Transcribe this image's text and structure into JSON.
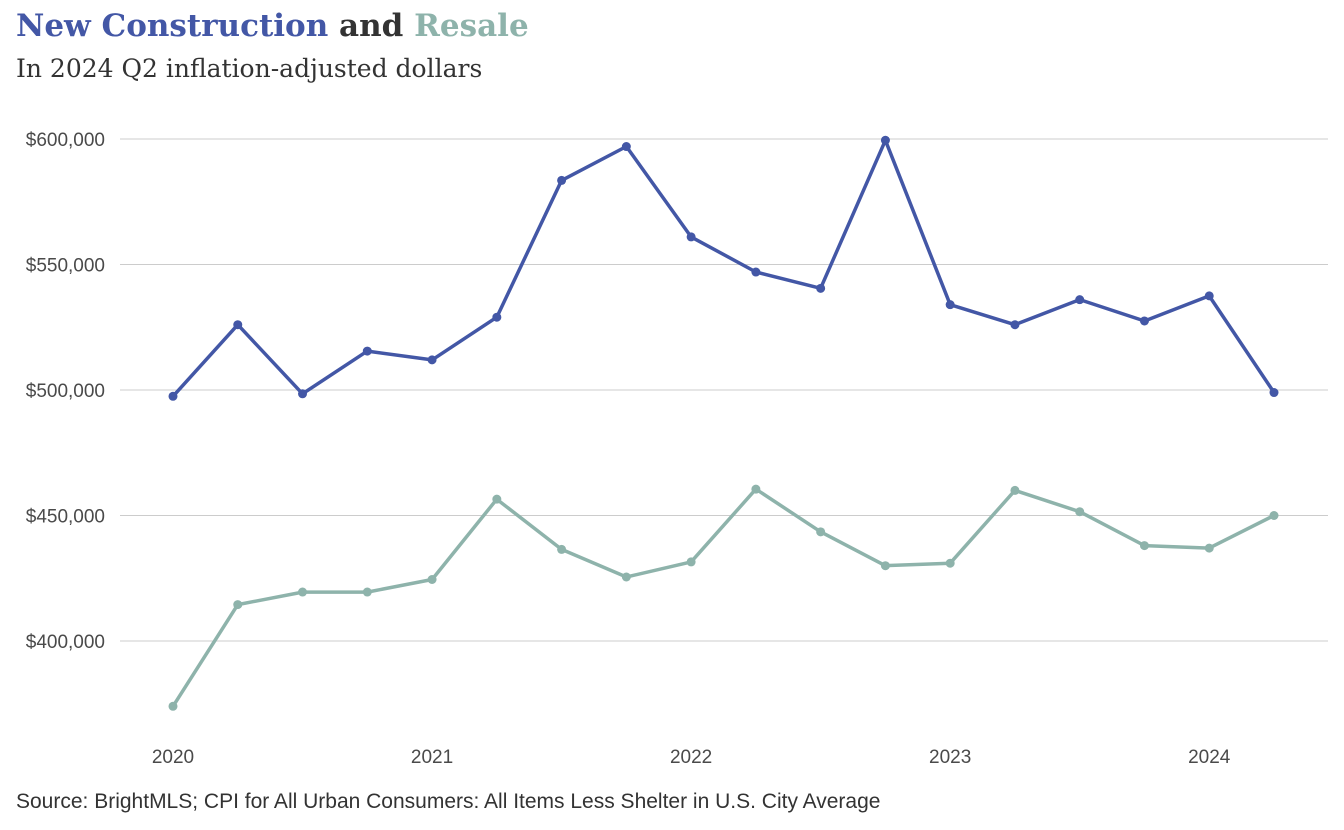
{
  "title": {
    "part1": "New Construction",
    "joiner": " and ",
    "part2": "Resale"
  },
  "subtitle": "In 2024 Q2 inflation-adjusted dollars",
  "source": "Source: BrightMLS; CPI for All Urban Consumers: All Items Less Shelter in U.S. City Average",
  "colors": {
    "new_construction": "#4357a6",
    "resale": "#8eb3ab",
    "joiner": "#333333",
    "grid": "#cccccc",
    "axis": "#4a4a4a"
  },
  "chart_data": {
    "type": "line",
    "x": [
      2020.0,
      2020.25,
      2020.5,
      2020.75,
      2021.0,
      2021.25,
      2021.5,
      2021.75,
      2022.0,
      2022.25,
      2022.5,
      2022.75,
      2023.0,
      2023.25,
      2023.5,
      2023.75,
      2024.0,
      2024.25
    ],
    "xticks": [
      2020,
      2021,
      2022,
      2023,
      2024
    ],
    "xtick_labels": [
      "2020",
      "2021",
      "2022",
      "2023",
      "2024"
    ],
    "ylim": [
      375000,
      600000
    ],
    "yticks": [
      400000,
      450000,
      500000,
      550000,
      600000
    ],
    "ytick_labels": [
      "$400,000",
      "$450,000",
      "$500,000",
      "$550,000",
      "$600,000"
    ],
    "grid": "horizontal",
    "legend": "title",
    "series": [
      {
        "name": "New Construction",
        "color": "#4357a6",
        "values": [
          497500,
          526000,
          498500,
          515500,
          512000,
          529000,
          583500,
          597000,
          561000,
          547000,
          540500,
          599500,
          534000,
          526000,
          536000,
          527500,
          537500,
          499000
        ]
      },
      {
        "name": "Resale",
        "color": "#8eb3ab",
        "values": [
          374000,
          414500,
          419500,
          419500,
          424500,
          456500,
          436500,
          425500,
          431500,
          460500,
          443500,
          430000,
          431000,
          460000,
          451500,
          438000,
          437000,
          450000
        ]
      }
    ]
  }
}
